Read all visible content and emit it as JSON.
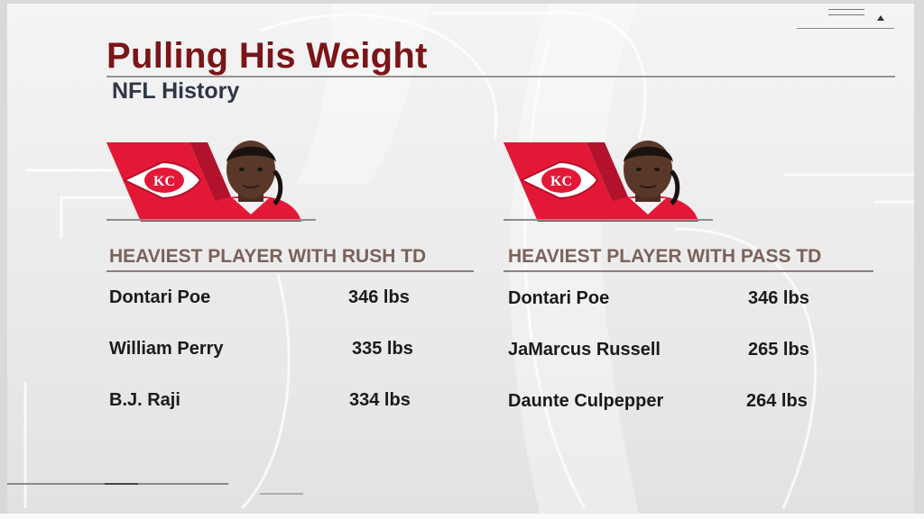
{
  "header": {
    "title": "Pulling His Weight",
    "subtitle": "NFL History"
  },
  "team": {
    "logo_text": "KC",
    "logo_red": "#e31837",
    "jersey_red": "#e31837"
  },
  "colors": {
    "title": "#7a1518",
    "column_header": "#7a625a",
    "text": "#1a1a1a"
  },
  "columns": [
    {
      "header": "HEAVIEST PLAYER WITH RUSH TD",
      "rows": [
        {
          "name": "Dontari Poe",
          "weight": "346 lbs"
        },
        {
          "name": "William Perry",
          "weight": "335 lbs"
        },
        {
          "name": "B.J. Raji",
          "weight": "334 lbs"
        }
      ]
    },
    {
      "header": "HEAVIEST PLAYER WITH PASS TD",
      "rows": [
        {
          "name": "Dontari Poe",
          "weight": "346 lbs"
        },
        {
          "name": "JaMarcus Russell",
          "weight": "265 lbs"
        },
        {
          "name": "Daunte Culpepper",
          "weight": "264 lbs"
        }
      ]
    }
  ],
  "icons": [
    "hamburger-icon",
    "up-triangle-icon",
    "arrowhead-logo-icon"
  ]
}
